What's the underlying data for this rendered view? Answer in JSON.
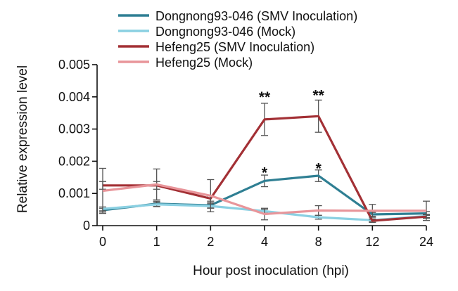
{
  "chart_data": {
    "type": "line",
    "title": "",
    "xlabel": "Hour post inoculation (hpi)",
    "ylabel": "Relative expression level",
    "categories": [
      "0",
      "1",
      "2",
      "4",
      "8",
      "12",
      "24"
    ],
    "ylim": [
      0,
      0.005
    ],
    "yticks": [
      "0",
      "0.001",
      "0.002",
      "0.003",
      "0.004",
      "0.005"
    ],
    "grid": false,
    "legend_position": "top",
    "series": [
      {
        "name": "Dongnong93-046 (SMV Inoculation)",
        "color": "#2f7f93",
        "values": [
          0.00048,
          0.00068,
          0.00063,
          0.00139,
          0.00155,
          0.00035,
          0.00038
        ],
        "errors": [
          6e-05,
          8e-05,
          8e-05,
          0.00018,
          0.00018,
          6e-05,
          6e-05
        ]
      },
      {
        "name": "Dongnong93-046 (Mock)",
        "color": "#8ad0e2",
        "values": [
          0.00052,
          0.00066,
          0.00061,
          0.00045,
          0.00026,
          0.00017,
          0.0003
        ],
        "errors": [
          6e-05,
          7e-05,
          7e-05,
          6e-05,
          6e-05,
          4e-05,
          5e-05
        ]
      },
      {
        "name": "Hefeng25 (SMV Inoculation)",
        "color": "#a33035",
        "values": [
          0.00125,
          0.00125,
          0.00084,
          0.0033,
          0.0034,
          0.00015,
          0.00028
        ],
        "errors": [
          0.00012,
          0.00012,
          8e-05,
          0.0005,
          0.0005,
          5e-05,
          6e-05
        ]
      },
      {
        "name": "Hefeng25 (Mock)",
        "color": "#e8959a",
        "values": [
          0.00108,
          0.00128,
          0.00093,
          0.00036,
          0.00047,
          0.00046,
          0.00046
        ],
        "errors": [
          0.0007,
          0.00048,
          0.0005,
          0.00018,
          0.00015,
          0.0002,
          0.0003
        ]
      }
    ],
    "annotations": [
      {
        "text": "**",
        "category": "4",
        "y": 0.00415
      },
      {
        "text": "**",
        "category": "8",
        "y": 0.0042
      },
      {
        "text": "*",
        "category": "4",
        "y": 0.0018
      },
      {
        "text": "*",
        "category": "8",
        "y": 0.00193
      }
    ]
  }
}
